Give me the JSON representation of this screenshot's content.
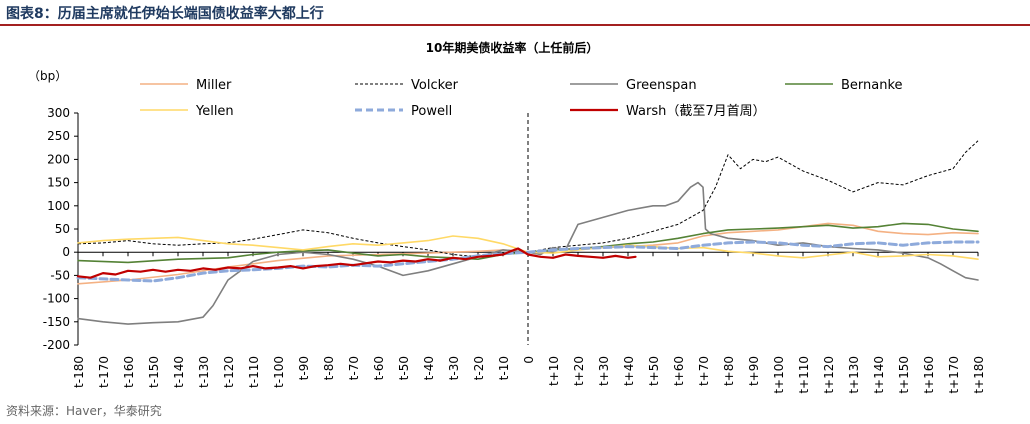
{
  "figure": {
    "title": "图表8：历届主席就任伊始长端国债收益率大都上行",
    "source": "资料来源：Haver，华泰研究"
  },
  "chart_data": {
    "type": "line",
    "title": "10年期美债收益率（上任前后）",
    "ylabel": "（bp）",
    "ylim": [
      -200,
      300
    ],
    "yticks": [
      -200,
      -150,
      -100,
      -50,
      0,
      50,
      100,
      150,
      200,
      250,
      300
    ],
    "xlim": [
      -180,
      180
    ],
    "xticks": [
      "t-180",
      "t-170",
      "t-160",
      "t-150",
      "t-140",
      "t-130",
      "t-120",
      "t-110",
      "t-100",
      "t-90",
      "t-80",
      "t-70",
      "t-60",
      "t-50",
      "t-40",
      "t-30",
      "t-20",
      "t-10",
      "0",
      "t+10",
      "t+20",
      "t+30",
      "t+40",
      "t+50",
      "t+60",
      "t+70",
      "t+80",
      "t+90",
      "t+100",
      "t+110",
      "t+120",
      "t+130",
      "t+140",
      "t+150",
      "t+160",
      "t+170",
      "t+180"
    ],
    "legend_position": "top",
    "grid": false,
    "series": [
      {
        "name": "Miller",
        "color": "#f4b183",
        "style": "solid",
        "x": [
          -180,
          -160,
          -140,
          -120,
          -100,
          -80,
          -60,
          -40,
          -20,
          -10,
          0,
          10,
          20,
          30,
          40,
          50,
          60,
          70,
          80,
          90,
          100,
          110,
          120,
          130,
          140,
          150,
          160,
          170,
          180
        ],
        "y": [
          -68,
          -60,
          -48,
          -32,
          -18,
          -8,
          -5,
          -2,
          2,
          5,
          0,
          5,
          8,
          10,
          12,
          15,
          20,
          35,
          42,
          45,
          48,
          55,
          62,
          58,
          45,
          40,
          38,
          42,
          40
        ]
      },
      {
        "name": "Volcker",
        "color": "#000000",
        "style": "dash",
        "x": [
          -180,
          -170,
          -160,
          -150,
          -140,
          -130,
          -120,
          -110,
          -100,
          -90,
          -80,
          -70,
          -60,
          -50,
          -40,
          -30,
          -20,
          -10,
          0,
          10,
          20,
          30,
          40,
          50,
          60,
          70,
          75,
          80,
          85,
          90,
          95,
          100,
          110,
          120,
          130,
          140,
          150,
          160,
          170,
          175,
          180
        ],
        "y": [
          18,
          20,
          25,
          18,
          15,
          18,
          20,
          28,
          38,
          48,
          42,
          30,
          20,
          12,
          5,
          -5,
          -10,
          5,
          0,
          10,
          15,
          20,
          30,
          45,
          60,
          90,
          140,
          210,
          180,
          200,
          195,
          205,
          175,
          155,
          130,
          150,
          145,
          165,
          180,
          215,
          240
        ]
      },
      {
        "name": "Greenspan",
        "color": "#7f7f7f",
        "style": "solid",
        "x": [
          -180,
          -170,
          -160,
          -150,
          -140,
          -130,
          -126,
          -120,
          -115,
          -110,
          -100,
          -90,
          -80,
          -70,
          -60,
          -50,
          -40,
          -30,
          -20,
          -10,
          0,
          5,
          10,
          15,
          20,
          30,
          40,
          50,
          55,
          60,
          65,
          68,
          70,
          71,
          73,
          80,
          90,
          100,
          110,
          120,
          130,
          140,
          150,
          160,
          165,
          170,
          175,
          180
        ],
        "y": [
          -143,
          -150,
          -155,
          -152,
          -150,
          -140,
          -115,
          -60,
          -40,
          -20,
          -5,
          0,
          -5,
          -15,
          -30,
          -50,
          -40,
          -25,
          -10,
          5,
          0,
          -5,
          10,
          5,
          60,
          75,
          90,
          100,
          100,
          110,
          140,
          150,
          140,
          50,
          40,
          30,
          25,
          15,
          20,
          12,
          8,
          5,
          -2,
          -12,
          -25,
          -40,
          -55,
          -60
        ]
      },
      {
        "name": "Bernanke",
        "color": "#548235",
        "style": "solid",
        "x": [
          -180,
          -160,
          -140,
          -120,
          -110,
          -100,
          -90,
          -80,
          -70,
          -60,
          -50,
          -40,
          -30,
          -20,
          -10,
          0,
          10,
          20,
          30,
          40,
          50,
          60,
          70,
          80,
          90,
          100,
          110,
          120,
          130,
          140,
          150,
          160,
          170,
          180
        ],
        "y": [
          -18,
          -22,
          -15,
          -12,
          -5,
          0,
          3,
          5,
          -2,
          -8,
          -5,
          -10,
          -12,
          -15,
          -5,
          0,
          5,
          8,
          12,
          18,
          22,
          30,
          40,
          48,
          50,
          52,
          55,
          58,
          52,
          55,
          62,
          60,
          50,
          45
        ]
      },
      {
        "name": "Yellen",
        "color": "#ffd966",
        "style": "solid",
        "x": [
          -180,
          -170,
          -160,
          -150,
          -140,
          -130,
          -120,
          -110,
          -100,
          -90,
          -80,
          -70,
          -60,
          -50,
          -40,
          -30,
          -20,
          -10,
          0,
          10,
          20,
          30,
          40,
          50,
          60,
          70,
          80,
          90,
          100,
          110,
          120,
          130,
          140,
          150,
          160,
          170,
          180
        ],
        "y": [
          20,
          25,
          28,
          30,
          32,
          25,
          18,
          15,
          10,
          5,
          12,
          18,
          15,
          20,
          25,
          35,
          30,
          18,
          0,
          -2,
          5,
          10,
          15,
          12,
          8,
          10,
          2,
          -2,
          -8,
          -12,
          -6,
          0,
          -10,
          -8,
          -5,
          -8,
          -15
        ]
      },
      {
        "name": "Powell",
        "color": "#8eaadb",
        "style": "dashed-thick",
        "x": [
          -180,
          -160,
          -150,
          -140,
          -130,
          -120,
          -110,
          -100,
          -90,
          -80,
          -70,
          -60,
          -50,
          -40,
          -30,
          -20,
          -10,
          0,
          10,
          20,
          30,
          40,
          50,
          60,
          70,
          80,
          90,
          100,
          110,
          120,
          130,
          140,
          150,
          160,
          170,
          180
        ],
        "y": [
          -55,
          -60,
          -62,
          -55,
          -45,
          -40,
          -38,
          -35,
          -30,
          -32,
          -28,
          -30,
          -25,
          -20,
          -15,
          -8,
          -3,
          0,
          5,
          8,
          10,
          12,
          10,
          8,
          15,
          20,
          22,
          20,
          15,
          12,
          18,
          20,
          15,
          20,
          22,
          22
        ]
      },
      {
        "name": "Warsh（截至7月首周）",
        "color": "#c00000",
        "style": "solid",
        "x": [
          -180,
          -175,
          -170,
          -165,
          -160,
          -155,
          -150,
          -145,
          -140,
          -135,
          -130,
          -125,
          -120,
          -115,
          -110,
          -105,
          -100,
          -95,
          -90,
          -85,
          -80,
          -75,
          -70,
          -65,
          -60,
          -55,
          -50,
          -45,
          -40,
          -35,
          -30,
          -25,
          -20,
          -15,
          -10,
          -7,
          -4,
          0,
          5,
          10,
          15,
          20,
          25,
          30,
          35,
          40,
          43
        ],
        "y": [
          -52,
          -55,
          -45,
          -48,
          -40,
          -42,
          -38,
          -42,
          -38,
          -40,
          -35,
          -38,
          -33,
          -35,
          -30,
          -35,
          -33,
          -30,
          -35,
          -30,
          -28,
          -25,
          -28,
          -24,
          -20,
          -22,
          -18,
          -20,
          -15,
          -18,
          -12,
          -15,
          -10,
          -8,
          -5,
          2,
          8,
          -5,
          -10,
          -12,
          -5,
          -8,
          -10,
          -12,
          -8,
          -12,
          -10
        ]
      }
    ]
  }
}
